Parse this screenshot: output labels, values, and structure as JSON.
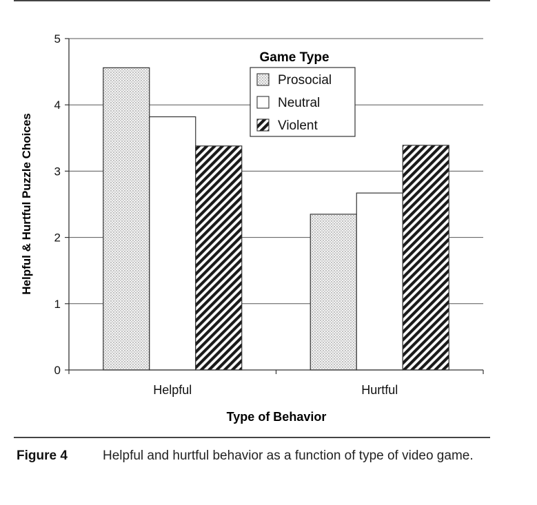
{
  "chart_data": {
    "type": "bar",
    "categories": [
      "Helpful",
      "Hurtful"
    ],
    "series": [
      {
        "name": "Prosocial",
        "values": [
          4.56,
          2.35
        ],
        "pattern": "dots"
      },
      {
        "name": "Neutral",
        "values": [
          3.82,
          2.67
        ],
        "pattern": "plain"
      },
      {
        "name": "Violent",
        "values": [
          3.38,
          3.39
        ],
        "pattern": "hatch"
      }
    ],
    "xlabel": "Type of Behavior",
    "ylabel": "Helpful & Hurtful Puzzle Choices",
    "ylim": [
      0,
      5
    ],
    "yticks": [
      "0",
      "1",
      "2",
      "3",
      "4",
      "5"
    ],
    "grid": true,
    "legend_title": "Game Type",
    "legend_position": "top-center"
  },
  "caption": {
    "label": "Figure 4",
    "text": "Helpful and hurtful behavior as a function of type of video game."
  }
}
